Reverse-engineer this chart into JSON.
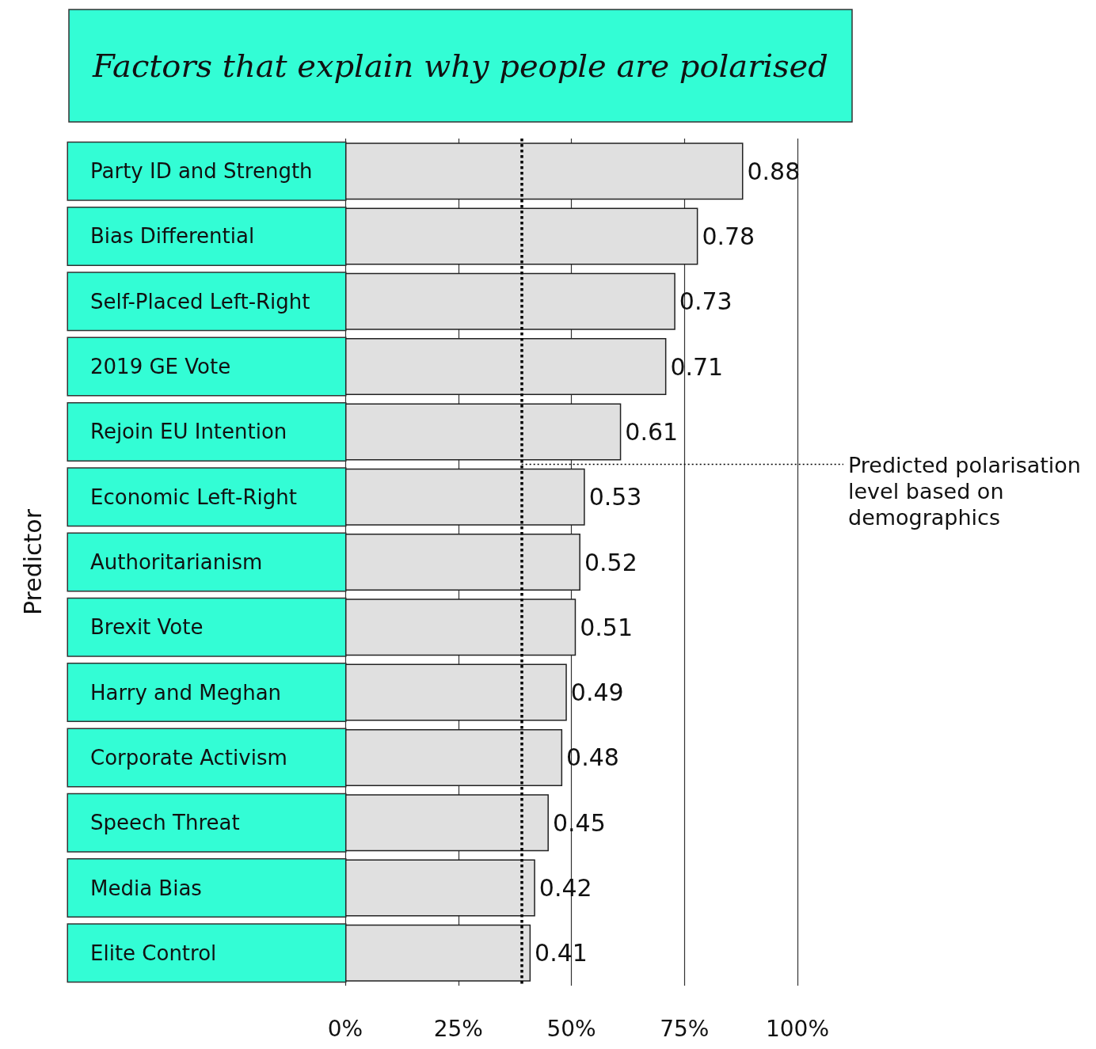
{
  "chart_data": {
    "type": "bar",
    "orientation": "horizontal",
    "title": "Factors that explain why people are polarised",
    "ylabel": "Predictor",
    "categories": [
      "Party ID and Strength",
      "Bias Differential",
      "Self-Placed Left-Right",
      "2019 GE Vote",
      "Rejoin EU Intention",
      "Economic Left-Right",
      "Authoritarianism",
      "Brexit Vote",
      "Harry and Meghan",
      "Corporate Activism",
      "Speech Threat",
      "Media Bias",
      "Elite Control"
    ],
    "values": [
      0.88,
      0.78,
      0.73,
      0.71,
      0.61,
      0.53,
      0.52,
      0.51,
      0.49,
      0.48,
      0.45,
      0.42,
      0.41
    ],
    "color": "#e0e0e0",
    "data_labels": true,
    "xlim": [
      0,
      1
    ],
    "xticks": [
      {
        "value": 0,
        "label": "0%"
      },
      {
        "value": 0.25,
        "label": "25%"
      },
      {
        "value": 0.5,
        "label": "50%"
      },
      {
        "value": 0.75,
        "label": "75%"
      },
      {
        "value": 1,
        "label": "100%"
      }
    ],
    "grid": "x",
    "ref_lines": [
      {
        "axis": "x",
        "value": 0.39,
        "label": "Predicted polarisation level based on demographics",
        "color": "#000000",
        "line_style": "dotted"
      }
    ]
  }
}
